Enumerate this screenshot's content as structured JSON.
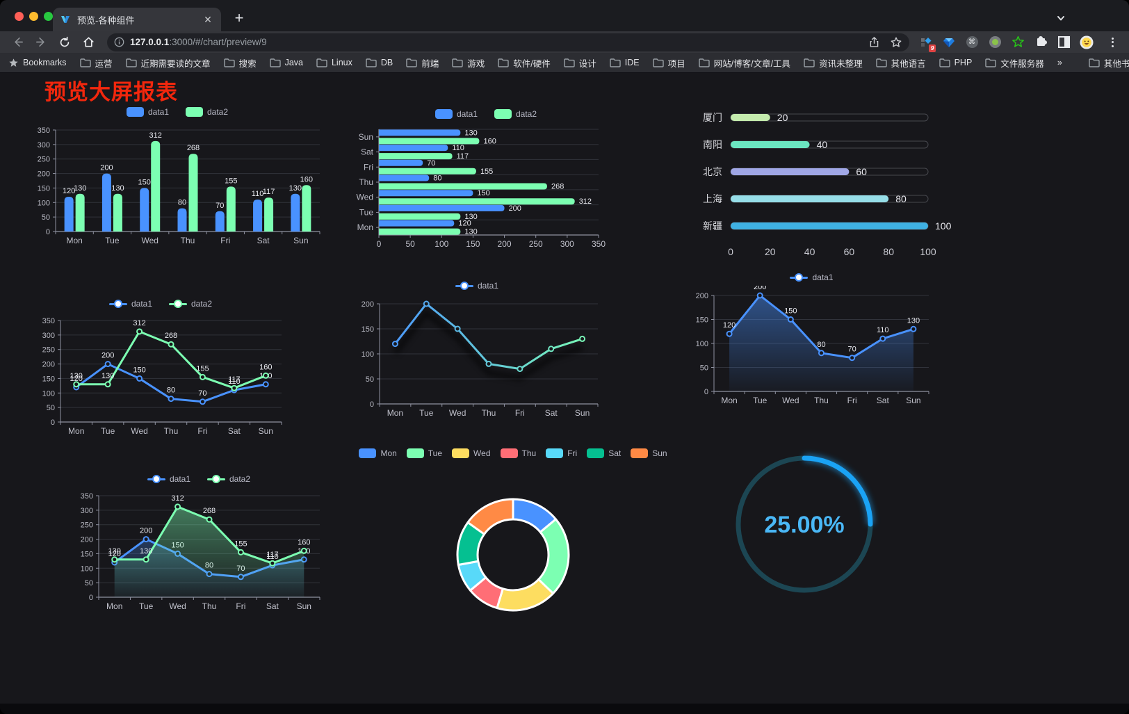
{
  "browser": {
    "tab": {
      "title": "预览-各种组件"
    },
    "url": {
      "host": "127.0.0.1",
      "path": ":3000/#/chart/preview/9"
    },
    "extension_badge": "9",
    "bookmarks": [
      "Bookmarks",
      "运营",
      "近期需要读的文章",
      "搜索",
      "Java",
      "Linux",
      "DB",
      "前端",
      "游戏",
      "软件/硬件",
      "设计",
      "IDE",
      "项目",
      "网站/博客/文章/工具",
      "资讯未整理",
      "其他语言",
      "PHP",
      "文件服务器",
      "»",
      "其他书签"
    ]
  },
  "page": {
    "title": "预览大屏报表"
  },
  "chart_data": [
    {
      "id": "bar-grouped",
      "type": "bar",
      "categories": [
        "Mon",
        "Tue",
        "Wed",
        "Thu",
        "Fri",
        "Sat",
        "Sun"
      ],
      "series": [
        {
          "name": "data1",
          "color": "#4992ff",
          "values": [
            120,
            200,
            150,
            80,
            70,
            110,
            130
          ]
        },
        {
          "name": "data2",
          "color": "#7cffb2",
          "values": [
            130,
            130,
            312,
            268,
            155,
            117,
            160
          ]
        }
      ],
      "ylim": [
        0,
        350
      ],
      "ytick": 50,
      "labels": true,
      "legend": "rect"
    },
    {
      "id": "bar-horizontal",
      "type": "barh",
      "categories": [
        "Mon",
        "Tue",
        "Wed",
        "Thu",
        "Fri",
        "Sat",
        "Sun"
      ],
      "series": [
        {
          "name": "data1",
          "color": "#4992ff",
          "values": [
            120,
            200,
            150,
            80,
            70,
            110,
            130
          ]
        },
        {
          "name": "data2",
          "color": "#7cffb2",
          "values": [
            130,
            130,
            312,
            268,
            155,
            117,
            160
          ]
        }
      ],
      "xlim": [
        0,
        350
      ],
      "xtick": 50,
      "labels": true,
      "legend": "rect"
    },
    {
      "id": "city-progress",
      "type": "progress",
      "items": [
        {
          "label": "厦门",
          "value": 20,
          "color": "#c4ebad"
        },
        {
          "label": "南阳",
          "value": 40,
          "color": "#6be6c1"
        },
        {
          "label": "北京",
          "value": 60,
          "color": "#a0a7e6"
        },
        {
          "label": "上海",
          "value": 80,
          "color": "#96dee8"
        },
        {
          "label": "新疆",
          "value": 100,
          "color": "#3fb1e3"
        }
      ],
      "xlim": [
        0,
        100
      ],
      "xticks": [
        0,
        20,
        40,
        60,
        80,
        100
      ]
    },
    {
      "id": "line-two",
      "type": "line",
      "categories": [
        "Mon",
        "Tue",
        "Wed",
        "Thu",
        "Fri",
        "Sat",
        "Sun"
      ],
      "series": [
        {
          "name": "data1",
          "color": "#4992ff",
          "values": [
            120,
            200,
            150,
            80,
            70,
            110,
            130
          ]
        },
        {
          "name": "data2",
          "color": "#7cffb2",
          "values": [
            130,
            130,
            312,
            268,
            155,
            117,
            160
          ]
        }
      ],
      "ylim": [
        0,
        350
      ],
      "ytick": 50,
      "labels": true,
      "legend": "line"
    },
    {
      "id": "line-gradient",
      "type": "line",
      "categories": [
        "Mon",
        "Tue",
        "Wed",
        "Thu",
        "Fri",
        "Sat",
        "Sun"
      ],
      "series": [
        {
          "name": "data1",
          "color": "#4992ff",
          "color_end": "#7cffb2",
          "values": [
            120,
            200,
            150,
            80,
            70,
            110,
            130
          ]
        }
      ],
      "ylim": [
        0,
        200
      ],
      "ytick": 50,
      "labels": false,
      "legend": "line",
      "shadow": true
    },
    {
      "id": "area-single",
      "type": "line",
      "area": true,
      "categories": [
        "Mon",
        "Tue",
        "Wed",
        "Thu",
        "Fri",
        "Sat",
        "Sun"
      ],
      "series": [
        {
          "name": "data1",
          "color": "#4992ff",
          "values": [
            120,
            200,
            150,
            80,
            70,
            110,
            130
          ]
        }
      ],
      "ylim": [
        0,
        200
      ],
      "ytick": 50,
      "labels": true,
      "legend": "line"
    },
    {
      "id": "area-two",
      "type": "line",
      "area": true,
      "categories": [
        "Mon",
        "Tue",
        "Wed",
        "Thu",
        "Fri",
        "Sat",
        "Sun"
      ],
      "series": [
        {
          "name": "data1",
          "color": "#4992ff",
          "values": [
            120,
            200,
            150,
            80,
            70,
            110,
            130
          ]
        },
        {
          "name": "data2",
          "color": "#7cffb2",
          "values": [
            130,
            130,
            312,
            268,
            155,
            117,
            160
          ]
        }
      ],
      "ylim": [
        0,
        350
      ],
      "ytick": 50,
      "labels": true,
      "legend": "line"
    },
    {
      "id": "week-donut",
      "type": "pie",
      "items": [
        {
          "label": "Mon",
          "value": 120,
          "color": "#4992ff"
        },
        {
          "label": "Tue",
          "value": 200,
          "color": "#7cffb2"
        },
        {
          "label": "Wed",
          "value": 150,
          "color": "#fddd60"
        },
        {
          "label": "Thu",
          "value": 80,
          "color": "#ff6e76"
        },
        {
          "label": "Fri",
          "value": 70,
          "color": "#58d9f9"
        },
        {
          "label": "Sat",
          "value": 110,
          "color": "#05c091"
        },
        {
          "label": "Sun",
          "value": 130,
          "color": "#ff8a45"
        }
      ],
      "legend": "rect"
    },
    {
      "id": "percent-gauge",
      "type": "gauge",
      "value": 25,
      "max": 100,
      "display": "25.00%",
      "color": "#1aa3f5",
      "track_color": "#1c4653",
      "text_color": "#4ab8f7"
    }
  ]
}
